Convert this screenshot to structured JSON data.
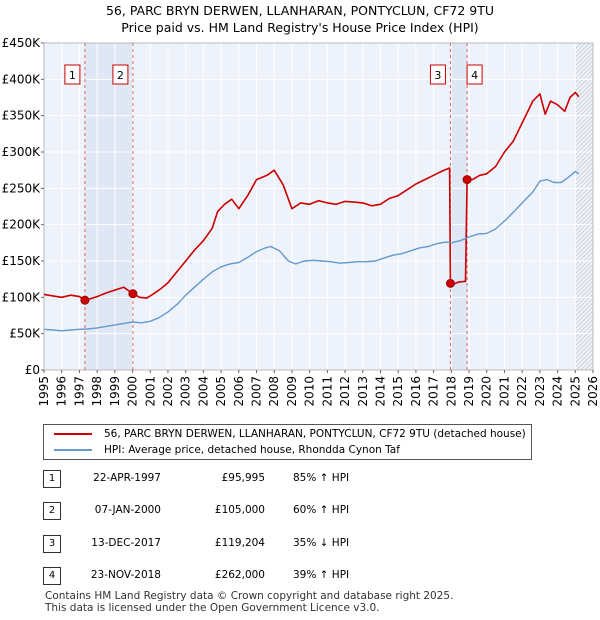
{
  "chart_data": {
    "type": "line",
    "title": "56, PARC BRYN DERWEN, LLANHARAN, PONTYCLUN, CF72 9TU",
    "subtitle": "Price paid vs. HM Land Registry's House Price Index (HPI)",
    "x_range": [
      1995,
      2026
    ],
    "x_ticks": [
      "1995",
      "1996",
      "1997",
      "1998",
      "1999",
      "2000",
      "2001",
      "2002",
      "2003",
      "2004",
      "2005",
      "2006",
      "2007",
      "2008",
      "2009",
      "2010",
      "2011",
      "2012",
      "2013",
      "2014",
      "2015",
      "2016",
      "2017",
      "2018",
      "2019",
      "2020",
      "2021",
      "2022",
      "2023",
      "2024",
      "2025",
      "2026"
    ],
    "ylim": [
      0,
      450000
    ],
    "y_ticks": [
      {
        "value": 0,
        "label": "£0"
      },
      {
        "value": 50000,
        "label": "£50K"
      },
      {
        "value": 100000,
        "label": "£100K"
      },
      {
        "value": 150000,
        "label": "£150K"
      },
      {
        "value": 200000,
        "label": "£200K"
      },
      {
        "value": 250000,
        "label": "£250K"
      },
      {
        "value": 300000,
        "label": "£300K"
      },
      {
        "value": 350000,
        "label": "£350K"
      },
      {
        "value": 400000,
        "label": "£400K"
      },
      {
        "value": 450000,
        "label": "£450K"
      }
    ],
    "grid": true,
    "series": [
      {
        "name": "56, PARC BRYN DERWEN, LLANHARAN, PONTYCLUN, CF72 9TU (detached house)",
        "color": "#cc0000",
        "points": [
          [
            1995.0,
            104000
          ],
          [
            1995.5,
            102000
          ],
          [
            1996.0,
            100000
          ],
          [
            1996.5,
            103000
          ],
          [
            1997.0,
            101000
          ],
          [
            1997.31,
            95995
          ],
          [
            1997.6,
            98000
          ],
          [
            1998.0,
            101000
          ],
          [
            1998.5,
            106000
          ],
          [
            1999.0,
            110000
          ],
          [
            1999.5,
            114000
          ],
          [
            2000.02,
            105000
          ],
          [
            2000.4,
            100000
          ],
          [
            2000.8,
            99000
          ],
          [
            2001.2,
            105000
          ],
          [
            2001.6,
            112000
          ],
          [
            2002.0,
            120000
          ],
          [
            2002.5,
            135000
          ],
          [
            2003.0,
            150000
          ],
          [
            2003.5,
            165000
          ],
          [
            2004.0,
            178000
          ],
          [
            2004.5,
            195000
          ],
          [
            2004.8,
            218000
          ],
          [
            2005.2,
            228000
          ],
          [
            2005.6,
            235000
          ],
          [
            2006.0,
            222000
          ],
          [
            2006.5,
            240000
          ],
          [
            2007.0,
            262000
          ],
          [
            2007.6,
            268000
          ],
          [
            2008.0,
            275000
          ],
          [
            2008.5,
            255000
          ],
          [
            2009.0,
            222000
          ],
          [
            2009.5,
            230000
          ],
          [
            2010.0,
            228000
          ],
          [
            2010.5,
            233000
          ],
          [
            2011.0,
            230000
          ],
          [
            2011.5,
            228000
          ],
          [
            2012.0,
            232000
          ],
          [
            2012.5,
            231000
          ],
          [
            2013.0,
            230000
          ],
          [
            2013.5,
            226000
          ],
          [
            2014.0,
            228000
          ],
          [
            2014.5,
            236000
          ],
          [
            2015.0,
            240000
          ],
          [
            2015.5,
            248000
          ],
          [
            2016.0,
            256000
          ],
          [
            2016.5,
            262000
          ],
          [
            2017.0,
            268000
          ],
          [
            2017.5,
            274000
          ],
          [
            2017.9,
            278000
          ],
          [
            2017.95,
            119204
          ],
          [
            2018.1,
            118000
          ],
          [
            2018.4,
            121000
          ],
          [
            2018.8,
            122000
          ],
          [
            2018.89,
            262000
          ],
          [
            2019.2,
            262000
          ],
          [
            2019.6,
            268000
          ],
          [
            2020.0,
            270000
          ],
          [
            2020.5,
            280000
          ],
          [
            2021.0,
            300000
          ],
          [
            2021.5,
            315000
          ],
          [
            2022.0,
            340000
          ],
          [
            2022.6,
            370000
          ],
          [
            2023.0,
            380000
          ],
          [
            2023.3,
            352000
          ],
          [
            2023.6,
            370000
          ],
          [
            2024.0,
            365000
          ],
          [
            2024.4,
            356000
          ],
          [
            2024.7,
            375000
          ],
          [
            2025.0,
            382000
          ],
          [
            2025.2,
            376000
          ]
        ]
      },
      {
        "name": "HPI: Average price, detached house, Rhondda Cynon Taf",
        "color": "#6699cc",
        "points": [
          [
            1995.0,
            56000
          ],
          [
            1995.5,
            55000
          ],
          [
            1996.0,
            54000
          ],
          [
            1996.5,
            55000
          ],
          [
            1997.0,
            56000
          ],
          [
            1997.5,
            56500
          ],
          [
            1998.0,
            58000
          ],
          [
            1998.5,
            60000
          ],
          [
            1999.0,
            62000
          ],
          [
            1999.5,
            64000
          ],
          [
            2000.0,
            66000
          ],
          [
            2000.5,
            65000
          ],
          [
            2001.0,
            67000
          ],
          [
            2001.5,
            72000
          ],
          [
            2002.0,
            80000
          ],
          [
            2002.5,
            90000
          ],
          [
            2003.0,
            103000
          ],
          [
            2003.5,
            114000
          ],
          [
            2004.0,
            125000
          ],
          [
            2004.5,
            135000
          ],
          [
            2005.0,
            142000
          ],
          [
            2005.5,
            146000
          ],
          [
            2006.0,
            148000
          ],
          [
            2006.5,
            155000
          ],
          [
            2007.0,
            163000
          ],
          [
            2007.5,
            168000
          ],
          [
            2007.8,
            170000
          ],
          [
            2008.3,
            164000
          ],
          [
            2008.8,
            150000
          ],
          [
            2009.2,
            146000
          ],
          [
            2009.7,
            150000
          ],
          [
            2010.2,
            151000
          ],
          [
            2010.7,
            150000
          ],
          [
            2011.2,
            149000
          ],
          [
            2011.7,
            147000
          ],
          [
            2012.2,
            148000
          ],
          [
            2012.7,
            149000
          ],
          [
            2013.2,
            149000
          ],
          [
            2013.7,
            150000
          ],
          [
            2014.2,
            154000
          ],
          [
            2014.7,
            158000
          ],
          [
            2015.2,
            160000
          ],
          [
            2015.7,
            164000
          ],
          [
            2016.2,
            168000
          ],
          [
            2016.7,
            170000
          ],
          [
            2017.2,
            174000
          ],
          [
            2017.7,
            176000
          ],
          [
            2018.0,
            175000
          ],
          [
            2018.5,
            178000
          ],
          [
            2019.0,
            183000
          ],
          [
            2019.5,
            187000
          ],
          [
            2020.0,
            188000
          ],
          [
            2020.5,
            194000
          ],
          [
            2021.0,
            205000
          ],
          [
            2021.5,
            217000
          ],
          [
            2022.0,
            230000
          ],
          [
            2022.6,
            245000
          ],
          [
            2023.0,
            260000
          ],
          [
            2023.4,
            262000
          ],
          [
            2023.8,
            258000
          ],
          [
            2024.2,
            258000
          ],
          [
            2024.6,
            265000
          ],
          [
            2025.0,
            273000
          ],
          [
            2025.2,
            270000
          ]
        ]
      }
    ],
    "sales": [
      {
        "label": "1",
        "x": 1997.31,
        "price": 95995
      },
      {
        "label": "2",
        "x": 2000.02,
        "price": 105000
      },
      {
        "label": "3",
        "x": 2017.95,
        "price": 119204
      },
      {
        "label": "4",
        "x": 2018.89,
        "price": 262000
      }
    ],
    "forecast_start": 2025.0
  },
  "legend": {
    "property_label": "56, PARC BRYN DERWEN, LLANHARAN, PONTYCLUN, CF72 9TU (detached house)",
    "hpi_label": "HPI: Average price, detached house, Rhondda Cynon Taf"
  },
  "transactions": [
    {
      "num": "1",
      "date": "22-APR-1997",
      "price": "£95,995",
      "hpi": "85% ↑ HPI"
    },
    {
      "num": "2",
      "date": "07-JAN-2000",
      "price": "£105,000",
      "hpi": "60% ↑ HPI"
    },
    {
      "num": "3",
      "date": "13-DEC-2017",
      "price": "£119,204",
      "hpi": "35% ↓ HPI"
    },
    {
      "num": "4",
      "date": "23-NOV-2018",
      "price": "£262,000",
      "hpi": "39% ↑ HPI"
    }
  ],
  "footer": {
    "line1": "Contains HM Land Registry data © Crown copyright and database right 2025.",
    "line2": "This data is licensed under the Open Government Licence v3.0."
  },
  "colors": {
    "property": "#cc0000",
    "hpi": "#6699cc",
    "plot_bg": "#eef2fa",
    "highlight": "#dfe6f4"
  }
}
